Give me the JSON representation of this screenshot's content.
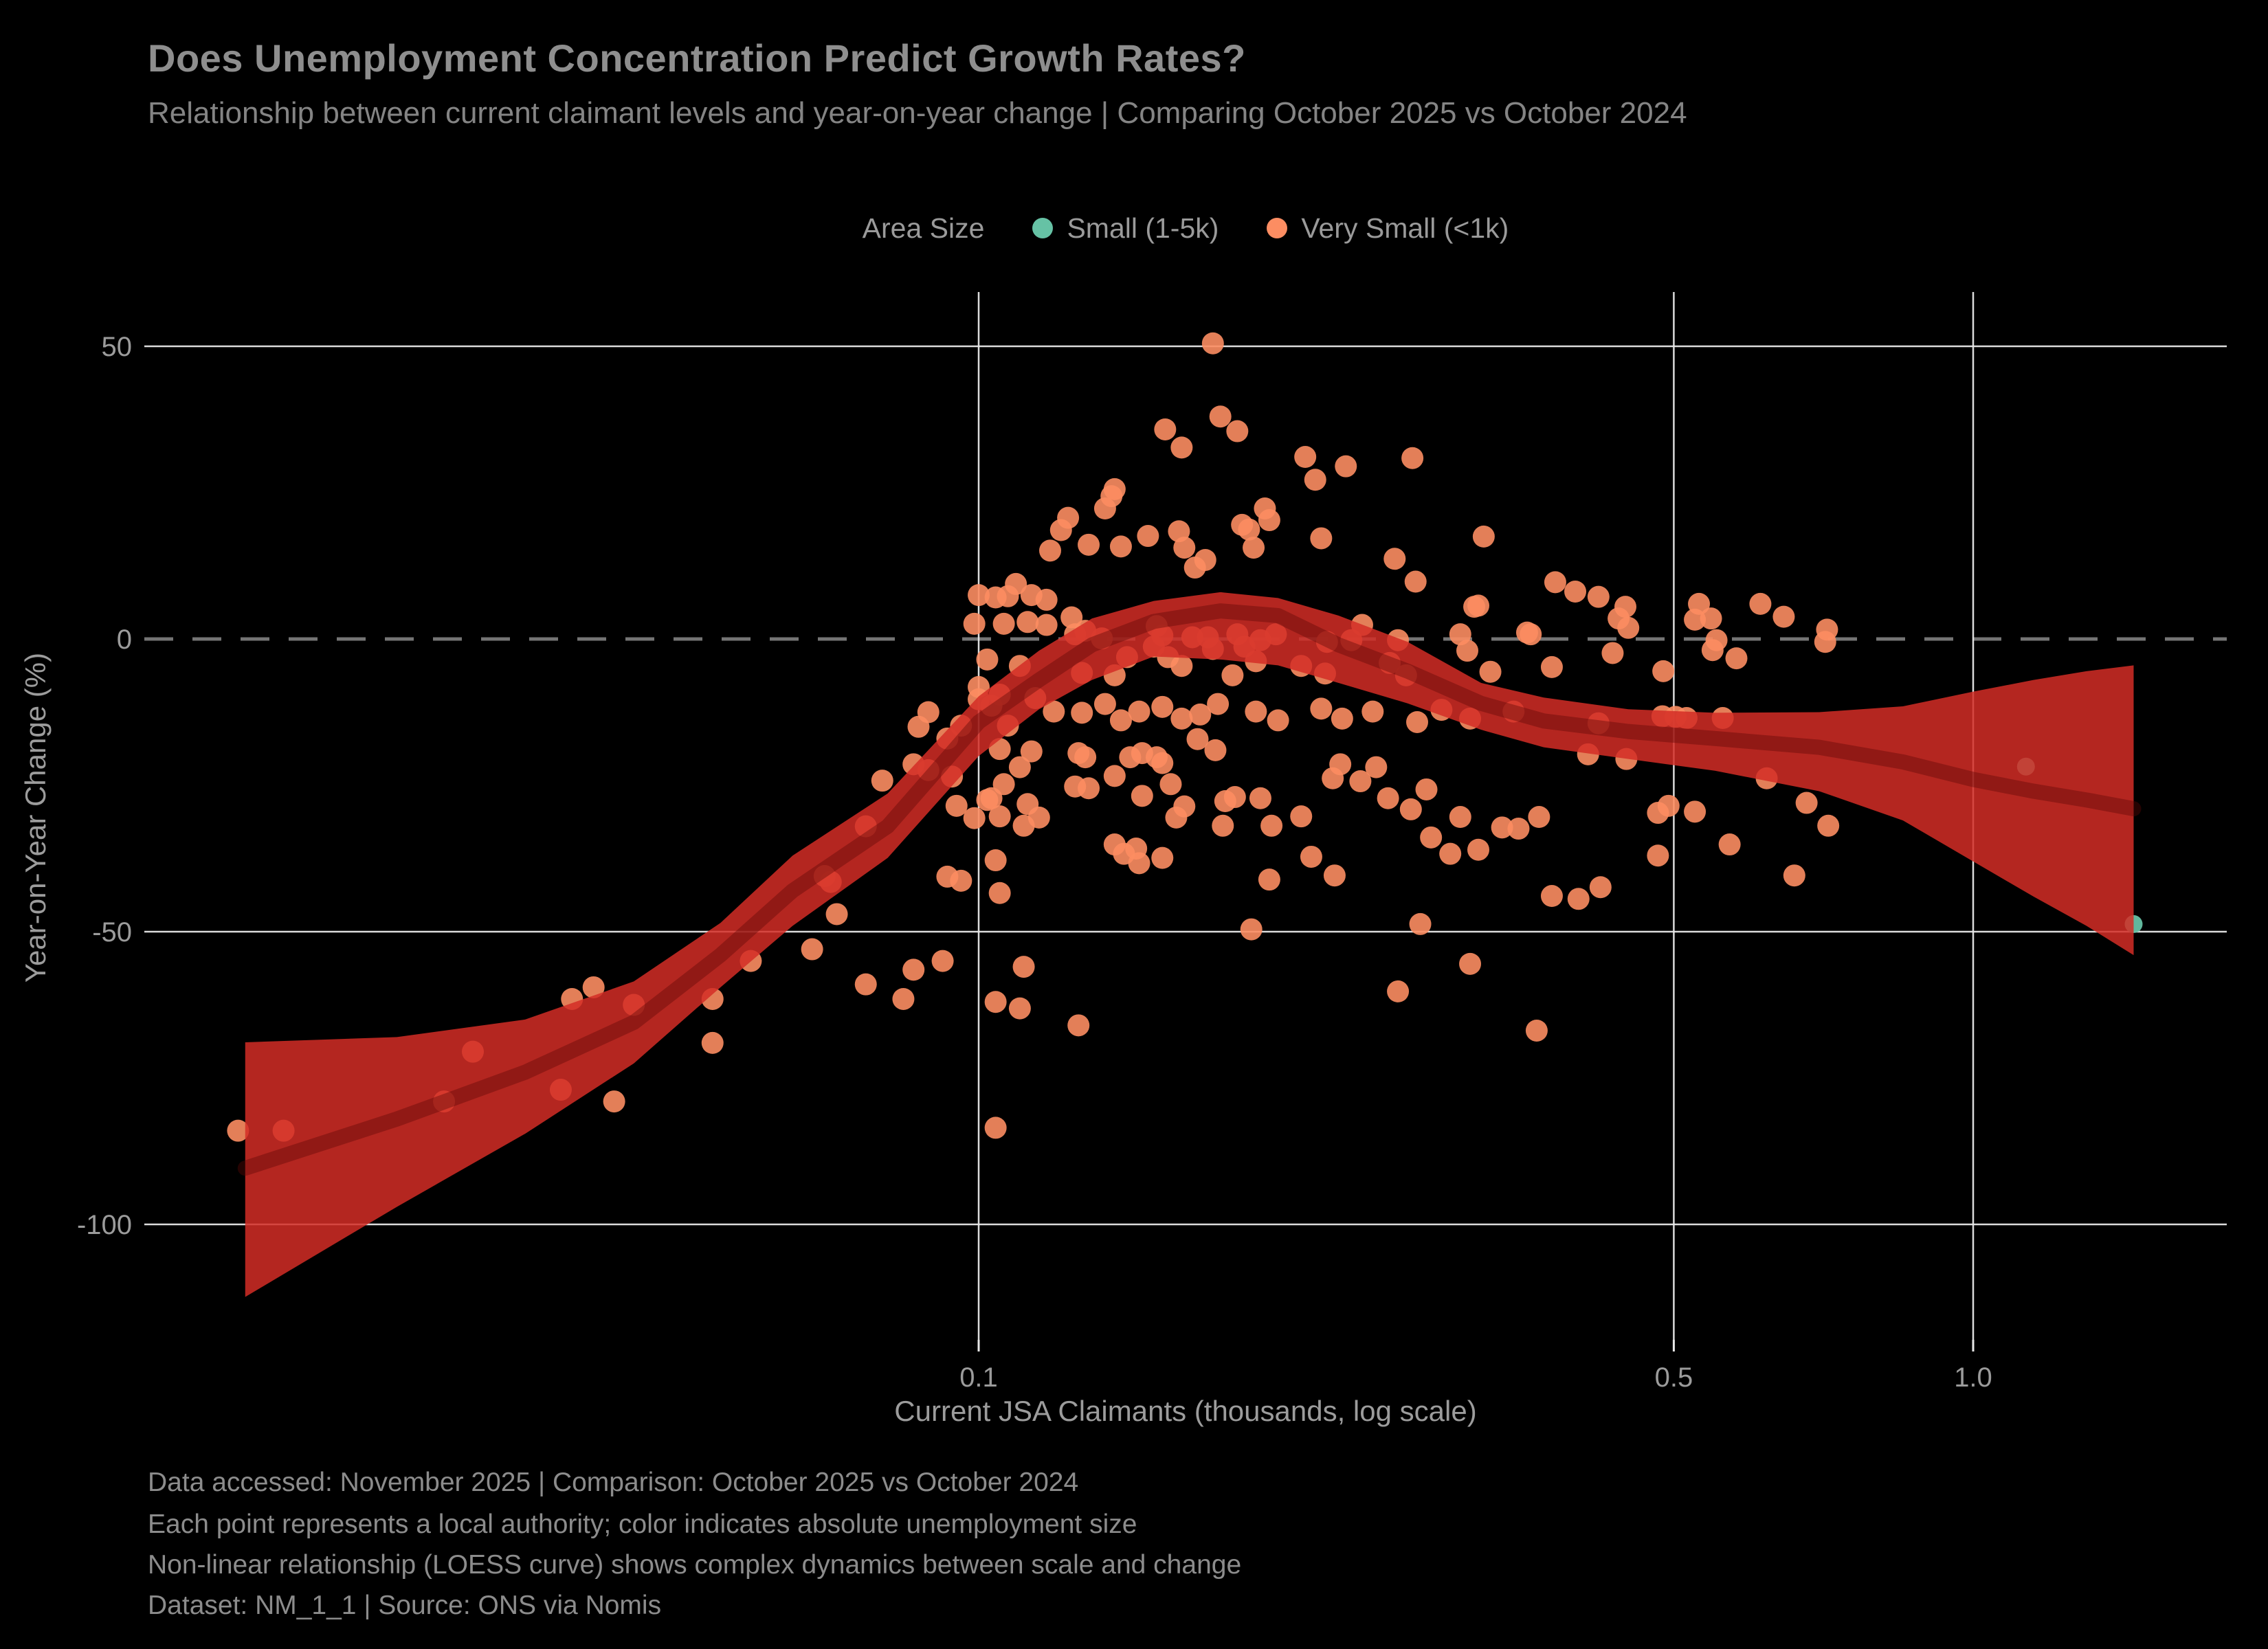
{
  "header": {
    "title": "Does Unemployment Concentration Predict Growth Rates?",
    "subtitle": "Relationship between current claimant levels and year-on-year change | Comparing October 2025 vs October 2024"
  },
  "legend": {
    "label": "Area Size",
    "items": [
      {
        "label": "Small (1-5k)",
        "color": "#66c2a5"
      },
      {
        "label": "Very Small (<1k)",
        "color": "#fc8d62"
      }
    ]
  },
  "chart_data": {
    "type": "scatter",
    "title": "Does Unemployment Concentration Predict Growth Rates?",
    "xlabel": "Current JSA Claimants (thousands, log scale)",
    "ylabel": "Year-on-Year Change (%)",
    "x_scale": "log",
    "xlim": [
      0.0145,
      1.8
    ],
    "ylim": [
      -120,
      59
    ],
    "x_ticks": [
      0.1,
      0.5,
      1.0
    ],
    "x_tick_labels": [
      "0.1",
      "0.5",
      "1.0"
    ],
    "y_ticks": [
      50,
      0,
      -50,
      -100
    ],
    "zero_line_y": 0,
    "grid": true,
    "legend_position": "top-center",
    "colors": {
      "grid": "#e8e8e8",
      "zero_line": "#757575",
      "tick_label": "#9b9b9b",
      "background": "#000000"
    },
    "series": [
      {
        "name": "Very Small (<1k)",
        "color": "#fc8d62",
        "marker_radius": 16,
        "marker_opacity": 0.9,
        "points": [
          [
            0.018,
            -84
          ],
          [
            0.02,
            -84
          ],
          [
            0.029,
            -79
          ],
          [
            0.031,
            -70.5
          ],
          [
            0.038,
            -77
          ],
          [
            0.039,
            -61.5
          ],
          [
            0.041,
            -59.5
          ],
          [
            0.043,
            -79
          ],
          [
            0.045,
            -62.5
          ],
          [
            0.054,
            -61.5
          ],
          [
            0.054,
            -69
          ],
          [
            0.059,
            -55
          ],
          [
            0.068,
            -53
          ],
          [
            0.07,
            -40.5
          ],
          [
            0.071,
            -41.5
          ],
          [
            0.072,
            -47
          ],
          [
            0.077,
            -59
          ],
          [
            0.084,
            -61.5
          ],
          [
            0.086,
            -56.5
          ],
          [
            0.092,
            -55
          ],
          [
            0.104,
            -62
          ],
          [
            0.104,
            -83.5
          ],
          [
            0.087,
            -15
          ],
          [
            0.089,
            -12.5
          ],
          [
            0.093,
            -17
          ],
          [
            0.096,
            -14.8
          ],
          [
            0.1,
            -10.3
          ],
          [
            0.103,
            -11.4
          ],
          [
            0.107,
            -14.8
          ],
          [
            0.086,
            -21.4
          ],
          [
            0.089,
            -22.4
          ],
          [
            0.08,
            -24.2
          ],
          [
            0.094,
            -23.5
          ],
          [
            0.095,
            -28.5
          ],
          [
            0.102,
            -27.5
          ],
          [
            0.099,
            -30.6
          ],
          [
            0.077,
            -32
          ],
          [
            0.104,
            -37.8
          ],
          [
            0.096,
            -41.3
          ],
          [
            0.093,
            -40.6
          ],
          [
            0.105,
            -43.4
          ],
          [
            0.172,
            50.5
          ],
          [
            0.175,
            38
          ],
          [
            0.154,
            35.8
          ],
          [
            0.182,
            35.5
          ],
          [
            0.16,
            32.7
          ],
          [
            0.213,
            31.1
          ],
          [
            0.218,
            27.2
          ],
          [
            0.234,
            29.5
          ],
          [
            0.273,
            30.9
          ],
          [
            0.322,
            17.5
          ],
          [
            0.137,
            25.6
          ],
          [
            0.136,
            24.4
          ],
          [
            0.134,
            22.3
          ],
          [
            0.123,
            20.7
          ],
          [
            0.129,
            16.1
          ],
          [
            0.121,
            18.6
          ],
          [
            0.118,
            15.1
          ],
          [
            0.139,
            15.8
          ],
          [
            0.148,
            17.6
          ],
          [
            0.159,
            18.4
          ],
          [
            0.161,
            15.6
          ],
          [
            0.165,
            12.2
          ],
          [
            0.169,
            13.5
          ],
          [
            0.184,
            19.5
          ],
          [
            0.187,
            18.7
          ],
          [
            0.189,
            15.6
          ],
          [
            0.194,
            22.3
          ],
          [
            0.196,
            20.3
          ],
          [
            0.221,
            17.2
          ],
          [
            0.262,
            13.7
          ],
          [
            0.275,
            9.8
          ],
          [
            0.318,
            5.7
          ],
          [
            0.109,
            9.4
          ],
          [
            0.113,
            7.5
          ],
          [
            0.117,
            6.7
          ],
          [
            0.107,
            7.3
          ],
          [
            0.104,
            7.1
          ],
          [
            0.1,
            7.5
          ],
          [
            0.099,
            2.6
          ],
          [
            0.106,
            2.6
          ],
          [
            0.112,
            2.9
          ],
          [
            0.117,
            2.4
          ],
          [
            0.124,
            3.7
          ],
          [
            0.125,
            0.8
          ],
          [
            0.128,
            1.4
          ],
          [
            0.133,
            0.1
          ],
          [
            0.151,
            2.2
          ],
          [
            0.153,
            0.6
          ],
          [
            0.15,
            -1.3
          ],
          [
            0.164,
            0.3
          ],
          [
            0.17,
            0.3
          ],
          [
            0.172,
            -1.7
          ],
          [
            0.182,
            0.8
          ],
          [
            0.185,
            -1.3
          ],
          [
            0.192,
            -0.2
          ],
          [
            0.199,
            0.8
          ],
          [
            0.224,
            -0.5
          ],
          [
            0.237,
            -0.2
          ],
          [
            0.243,
            2.4
          ],
          [
            0.264,
            -0.2
          ],
          [
            0.305,
            0.8
          ],
          [
            0.31,
            -2
          ],
          [
            0.359,
            0.8
          ],
          [
            0.102,
            -3.5
          ],
          [
            0.11,
            -4.6
          ],
          [
            0.127,
            -5.8
          ],
          [
            0.137,
            -6.2
          ],
          [
            0.141,
            -3.1
          ],
          [
            0.155,
            -3.1
          ],
          [
            0.16,
            -4.6
          ],
          [
            0.19,
            -3.8
          ],
          [
            0.18,
            -6.2
          ],
          [
            0.211,
            -4.6
          ],
          [
            0.223,
            -5.9
          ],
          [
            0.259,
            -4.1
          ],
          [
            0.269,
            -6.2
          ],
          [
            0.327,
            -5.6
          ],
          [
            0.1,
            -8.2
          ],
          [
            0.105,
            -9.5
          ],
          [
            0.114,
            -10.1
          ],
          [
            0.119,
            -12.4
          ],
          [
            0.127,
            -12.6
          ],
          [
            0.134,
            -11.1
          ],
          [
            0.139,
            -13.9
          ],
          [
            0.145,
            -12.4
          ],
          [
            0.153,
            -11.6
          ],
          [
            0.16,
            -13.6
          ],
          [
            0.167,
            -12.9
          ],
          [
            0.174,
            -11.1
          ],
          [
            0.19,
            -12.4
          ],
          [
            0.2,
            -13.9
          ],
          [
            0.221,
            -11.9
          ],
          [
            0.232,
            -13.6
          ],
          [
            0.249,
            -12.4
          ],
          [
            0.276,
            -14.2
          ],
          [
            0.292,
            -12.1
          ],
          [
            0.312,
            -13.6
          ],
          [
            0.345,
            -12.4
          ],
          [
            0.166,
            -17.1
          ],
          [
            0.38,
            9.7
          ],
          [
            0.398,
            8.1
          ],
          [
            0.42,
            7.2
          ],
          [
            0.447,
            5.5
          ],
          [
            0.44,
            3.5
          ],
          [
            0.45,
            1.9
          ],
          [
            0.356,
            1.1
          ],
          [
            0.315,
            5.5
          ],
          [
            0.434,
            -2.4
          ],
          [
            0.377,
            -4.8
          ],
          [
            0.488,
            -5.5
          ],
          [
            0.53,
            6
          ],
          [
            0.525,
            3.3
          ],
          [
            0.545,
            3.5
          ],
          [
            0.552,
            -0.2
          ],
          [
            0.547,
            -1.9
          ],
          [
            0.578,
            -3.3
          ],
          [
            0.611,
            6
          ],
          [
            0.645,
            3.8
          ],
          [
            0.713,
            1.6
          ],
          [
            0.71,
            -0.5
          ],
          [
            0.105,
            -18.8
          ],
          [
            0.11,
            -21.9
          ],
          [
            0.113,
            -19.2
          ],
          [
            0.106,
            -24.8
          ],
          [
            0.103,
            -27.2
          ],
          [
            0.105,
            -30.3
          ],
          [
            0.112,
            -28.2
          ],
          [
            0.115,
            -30.5
          ],
          [
            0.111,
            -31.9
          ],
          [
            0.126,
            -19.5
          ],
          [
            0.128,
            -20.2
          ],
          [
            0.125,
            -25.2
          ],
          [
            0.129,
            -25.5
          ],
          [
            0.137,
            -23.4
          ],
          [
            0.142,
            -20.2
          ],
          [
            0.146,
            -19.5
          ],
          [
            0.151,
            -20.2
          ],
          [
            0.153,
            -21.2
          ],
          [
            0.146,
            -26.8
          ],
          [
            0.156,
            -24.8
          ],
          [
            0.161,
            -28.6
          ],
          [
            0.158,
            -30.5
          ],
          [
            0.137,
            -35.1
          ],
          [
            0.14,
            -36.7
          ],
          [
            0.144,
            -35.8
          ],
          [
            0.145,
            -38.3
          ],
          [
            0.153,
            -37.4
          ],
          [
            0.173,
            -19
          ],
          [
            0.177,
            -27.7
          ],
          [
            0.181,
            -27
          ],
          [
            0.192,
            -27.2
          ],
          [
            0.176,
            -31.9
          ],
          [
            0.197,
            -31.9
          ],
          [
            0.211,
            -30.3
          ],
          [
            0.231,
            -21.4
          ],
          [
            0.227,
            -23.8
          ],
          [
            0.242,
            -24.3
          ],
          [
            0.216,
            -37.2
          ],
          [
            0.228,
            -40.4
          ],
          [
            0.196,
            -41.1
          ],
          [
            0.251,
            -21.9
          ],
          [
            0.258,
            -27.2
          ],
          [
            0.282,
            -25.7
          ],
          [
            0.272,
            -29.1
          ],
          [
            0.285,
            -33.9
          ],
          [
            0.298,
            -36.7
          ],
          [
            0.305,
            -30.4
          ],
          [
            0.278,
            -48.7
          ],
          [
            0.188,
            -49.6
          ],
          [
            0.111,
            -56
          ],
          [
            0.11,
            -63.1
          ],
          [
            0.126,
            -66
          ],
          [
            0.264,
            -60.2
          ],
          [
            0.42,
            -14.4
          ],
          [
            0.41,
            -19.7
          ],
          [
            0.448,
            -20.5
          ],
          [
            0.487,
            -13.2
          ],
          [
            0.502,
            -13.3
          ],
          [
            0.515,
            -13.5
          ],
          [
            0.56,
            -13.5
          ],
          [
            0.366,
            -30.4
          ],
          [
            0.336,
            -32.2
          ],
          [
            0.349,
            -32.4
          ],
          [
            0.318,
            -36
          ],
          [
            0.482,
            -29.7
          ],
          [
            0.494,
            -28.5
          ],
          [
            0.525,
            -29.5
          ],
          [
            0.482,
            -37
          ],
          [
            0.569,
            -35.1
          ],
          [
            0.661,
            -40.4
          ],
          [
            0.68,
            -28
          ],
          [
            0.715,
            -31.9
          ],
          [
            0.377,
            -43.9
          ],
          [
            0.401,
            -44.4
          ],
          [
            0.422,
            -42.4
          ],
          [
            0.312,
            -55.5
          ],
          [
            0.364,
            -66.9
          ],
          [
            0.62,
            -23.8
          ]
        ]
      },
      {
        "name": "Small (1-5k)",
        "color": "#66c2a5",
        "marker_radius": 13,
        "marker_opacity": 0.95,
        "points": [
          [
            1.13,
            -21.8
          ],
          [
            1.45,
            -48.7
          ]
        ]
      }
    ],
    "loess_band": {
      "label": "LOESS curve with confidence band",
      "band_color": "#d42d26",
      "band_opacity": 0.85,
      "line_color": "#5c0805",
      "line_opacity": 0.4,
      "line_width": 22,
      "x": [
        0.0183,
        0.026,
        0.035,
        0.045,
        0.055,
        0.065,
        0.081,
        0.1,
        0.115,
        0.13,
        0.15,
        0.175,
        0.2,
        0.23,
        0.27,
        0.32,
        0.37,
        0.45,
        0.55,
        0.7,
        0.85,
        1.0,
        1.15,
        1.3,
        1.45
      ],
      "upper": [
        -68.9,
        -68,
        -65,
        -58.5,
        -48.5,
        -37,
        -26.4,
        -9.8,
        -2,
        3.5,
        6.5,
        8,
        7,
        4,
        -0.5,
        -7.5,
        -10,
        -12,
        -12.6,
        -12.5,
        -11.5,
        -9,
        -7,
        -5.5,
        -4.5
      ],
      "lower": [
        -112.4,
        -97,
        -84.5,
        -72.5,
        -59.5,
        -49,
        -37.4,
        -20,
        -12,
        -7,
        -3,
        -3.5,
        -4.5,
        -7.5,
        -11,
        -15.5,
        -18.5,
        -20.5,
        -22.5,
        -26,
        -31,
        -38,
        -44,
        -49,
        -54
      ],
      "trend": [
        -90.4,
        -82,
        -74,
        -65.5,
        -54,
        -43,
        -32,
        -14.2,
        -7,
        -1,
        3,
        4.8,
        4,
        -1,
        -5.5,
        -11,
        -14,
        -15.8,
        -17,
        -18.5,
        -21,
        -24,
        -26,
        -27.5,
        -29
      ]
    }
  },
  "footer": {
    "lines": [
      "Data accessed: November 2025 | Comparison: October 2025 vs October 2024",
      "Each point represents a local authority; color indicates absolute unemployment size",
      "Non-linear relationship (LOESS curve) shows complex dynamics between scale and change",
      "Dataset: NM_1_1 | Source: ONS via Nomis"
    ]
  }
}
